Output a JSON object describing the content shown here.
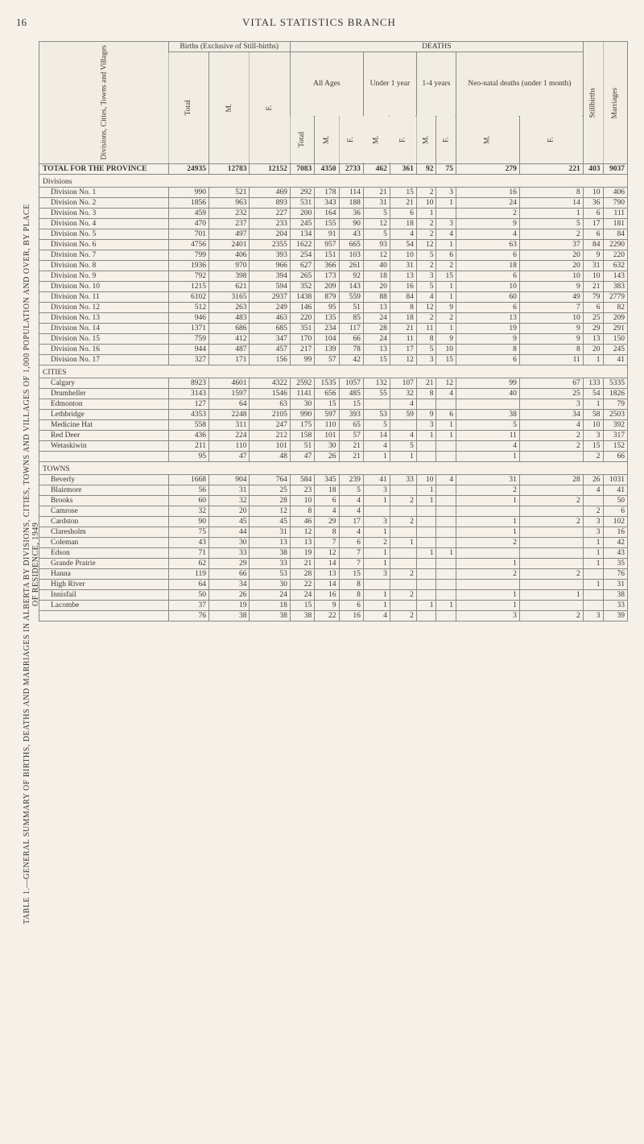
{
  "page_number": "16",
  "page_title": "VITAL STATISTICS BRANCH",
  "table_caption": "TABLE 1.—GENERAL SUMMARY OF BIRTHS, DEATHS AND MARRIAGES IN ALBERTA BY DIVISIONS, CITIES, TOWNS AND VILLAGES OF 1,000 POPULATION AND OVER, BY PLACE OF RESIDENCE, 1949",
  "row_header_title": "Divisions, Cities, Towns and Villages",
  "column_groups": {
    "births_group": "Births (Exclusive of Still-births)",
    "deaths_group": "DEATHS",
    "all_ages": "All Ages",
    "under_1": "Under 1 year",
    "one_to_four": "1-4 years",
    "neonatal": "Neo-natal deaths (under 1 month)"
  },
  "columns": [
    "Total",
    "M.",
    "F.",
    "Total",
    "M.",
    "F.",
    "M.",
    "F.",
    "M.",
    "F.",
    "M.",
    "F.",
    "Stillbirths",
    "Marriages"
  ],
  "sections": [
    {
      "label": "TOTAL FOR THE PROVINCE",
      "total_row": [
        "24935",
        "12783",
        "12152",
        "7083",
        "4350",
        "2733",
        "462",
        "361",
        "92",
        "75",
        "279",
        "221",
        "403",
        "9037"
      ]
    },
    {
      "label": "Divisions",
      "rows": [
        {
          "name": "Division No. 1",
          "vals": [
            "990",
            "521",
            "469",
            "292",
            "178",
            "114",
            "21",
            "15",
            "2",
            "3",
            "16",
            "8",
            "10",
            "406"
          ]
        },
        {
          "name": "Division No. 2",
          "vals": [
            "1856",
            "963",
            "893",
            "531",
            "343",
            "188",
            "31",
            "21",
            "10",
            "1",
            "24",
            "14",
            "36",
            "790"
          ]
        },
        {
          "name": "Division No. 3",
          "vals": [
            "459",
            "232",
            "227",
            "200",
            "164",
            "36",
            "5",
            "6",
            "1",
            "",
            "2",
            "1",
            "6",
            "111"
          ]
        },
        {
          "name": "Division No. 4",
          "vals": [
            "470",
            "237",
            "233",
            "245",
            "155",
            "90",
            "12",
            "18",
            "2",
            "3",
            "9",
            "5",
            "17",
            "181"
          ]
        },
        {
          "name": "Division No. 5",
          "vals": [
            "701",
            "497",
            "204",
            "134",
            "91",
            "43",
            "5",
            "4",
            "2",
            "4",
            "4",
            "2",
            "6",
            "84"
          ]
        },
        {
          "name": "Division No. 6",
          "vals": [
            "4756",
            "2401",
            "2355",
            "1622",
            "957",
            "665",
            "93",
            "54",
            "12",
            "1",
            "63",
            "37",
            "84",
            "2290"
          ]
        },
        {
          "name": "Division No. 7",
          "vals": [
            "799",
            "406",
            "393",
            "254",
            "151",
            "103",
            "12",
            "10",
            "5",
            "6",
            "6",
            "20",
            "9",
            "220"
          ]
        },
        {
          "name": "Division No. 8",
          "vals": [
            "1936",
            "970",
            "966",
            "627",
            "366",
            "261",
            "40",
            "31",
            "2",
            "2",
            "18",
            "20",
            "31",
            "632"
          ]
        },
        {
          "name": "Division No. 9",
          "vals": [
            "792",
            "398",
            "394",
            "265",
            "173",
            "92",
            "18",
            "13",
            "3",
            "15",
            "6",
            "10",
            "10",
            "143"
          ]
        },
        {
          "name": "Division No. 10",
          "vals": [
            "1215",
            "621",
            "594",
            "352",
            "209",
            "143",
            "20",
            "16",
            "5",
            "1",
            "10",
            "9",
            "21",
            "383"
          ]
        },
        {
          "name": "Division No. 11",
          "vals": [
            "6102",
            "3165",
            "2937",
            "1438",
            "879",
            "559",
            "88",
            "84",
            "4",
            "1",
            "60",
            "49",
            "79",
            "2779"
          ]
        },
        {
          "name": "Division No. 12",
          "vals": [
            "512",
            "263",
            "249",
            "146",
            "95",
            "51",
            "13",
            "8",
            "12",
            "9",
            "6",
            "7",
            "6",
            "82"
          ]
        },
        {
          "name": "Division No. 13",
          "vals": [
            "946",
            "483",
            "463",
            "220",
            "135",
            "85",
            "24",
            "18",
            "2",
            "2",
            "13",
            "10",
            "25",
            "209"
          ]
        },
        {
          "name": "Division No. 14",
          "vals": [
            "1371",
            "686",
            "685",
            "351",
            "234",
            "117",
            "28",
            "21",
            "11",
            "1",
            "19",
            "9",
            "29",
            "291"
          ]
        },
        {
          "name": "Division No. 15",
          "vals": [
            "759",
            "412",
            "347",
            "170",
            "104",
            "66",
            "24",
            "11",
            "8",
            "9",
            "9",
            "9",
            "13",
            "150"
          ]
        },
        {
          "name": "Division No. 16",
          "vals": [
            "944",
            "487",
            "457",
            "217",
            "139",
            "78",
            "13",
            "17",
            "5",
            "10",
            "8",
            "8",
            "20",
            "245"
          ]
        },
        {
          "name": "Division No. 17",
          "vals": [
            "327",
            "171",
            "156",
            "99",
            "57",
            "42",
            "15",
            "12",
            "3",
            "15",
            "6",
            "11",
            "1",
            "41"
          ]
        }
      ]
    },
    {
      "label": "CITIES",
      "rows": [
        {
          "name": "Calgary",
          "vals": [
            "8923",
            "4601",
            "4322",
            "2592",
            "1535",
            "1057",
            "132",
            "107",
            "21",
            "12",
            "99",
            "67",
            "133",
            "5335"
          ]
        },
        {
          "name": "Drumheller",
          "vals": [
            "3143",
            "1597",
            "1546",
            "1141",
            "656",
            "485",
            "55",
            "32",
            "8",
            "4",
            "40",
            "25",
            "54",
            "1826"
          ]
        },
        {
          "name": "Edmonton",
          "vals": [
            "127",
            "64",
            "63",
            "30",
            "15",
            "15",
            "",
            "4",
            "",
            "",
            "",
            "3",
            "1",
            "79"
          ]
        },
        {
          "name": "Lethbridge",
          "vals": [
            "4353",
            "2248",
            "2105",
            "990",
            "597",
            "393",
            "53",
            "59",
            "9",
            "6",
            "38",
            "34",
            "58",
            "2503"
          ]
        },
        {
          "name": "Medicine Hat",
          "vals": [
            "558",
            "311",
            "247",
            "175",
            "110",
            "65",
            "5",
            "",
            "3",
            "1",
            "5",
            "4",
            "10",
            "392"
          ]
        },
        {
          "name": "Red Deer",
          "vals": [
            "436",
            "224",
            "212",
            "158",
            "101",
            "57",
            "14",
            "4",
            "1",
            "1",
            "11",
            "2",
            "3",
            "317"
          ]
        },
        {
          "name": "Wetaskiwin",
          "vals": [
            "211",
            "110",
            "101",
            "51",
            "30",
            "21",
            "4",
            "5",
            "",
            "",
            "4",
            "2",
            "15",
            "152"
          ]
        },
        {
          "name": "",
          "vals": [
            "95",
            "47",
            "48",
            "47",
            "26",
            "21",
            "1",
            "1",
            "",
            "",
            "1",
            "",
            "2",
            "66"
          ]
        }
      ]
    },
    {
      "label": "TOWNS",
      "rows": [
        {
          "name": "Beverly",
          "vals": [
            "1668",
            "904",
            "764",
            "584",
            "345",
            "239",
            "41",
            "33",
            "10",
            "4",
            "31",
            "28",
            "26",
            "1031"
          ]
        },
        {
          "name": "Blairmore",
          "vals": [
            "56",
            "31",
            "25",
            "23",
            "18",
            "5",
            "3",
            "",
            "1",
            "",
            "2",
            "",
            "4",
            "41"
          ]
        },
        {
          "name": "Brooks",
          "vals": [
            "60",
            "32",
            "28",
            "10",
            "6",
            "4",
            "1",
            "2",
            "1",
            "",
            "1",
            "2",
            "",
            "50"
          ]
        },
        {
          "name": "Camrose",
          "vals": [
            "32",
            "20",
            "12",
            "8",
            "4",
            "4",
            "",
            "",
            "",
            "",
            "",
            "",
            "2",
            "6"
          ]
        },
        {
          "name": "Cardston",
          "vals": [
            "90",
            "45",
            "45",
            "46",
            "29",
            "17",
            "3",
            "2",
            "",
            "",
            "1",
            "2",
            "3",
            "102"
          ]
        },
        {
          "name": "Claresholm",
          "vals": [
            "75",
            "44",
            "31",
            "12",
            "8",
            "4",
            "1",
            "",
            "",
            "",
            "1",
            "",
            "3",
            "16"
          ]
        },
        {
          "name": "Coleman",
          "vals": [
            "43",
            "30",
            "13",
            "13",
            "7",
            "6",
            "2",
            "1",
            "",
            "",
            "2",
            "",
            "1",
            "42"
          ]
        },
        {
          "name": "Edson",
          "vals": [
            "71",
            "33",
            "38",
            "19",
            "12",
            "7",
            "1",
            "",
            "1",
            "1",
            "",
            "",
            "1",
            "43"
          ]
        },
        {
          "name": "Grande Prairie",
          "vals": [
            "62",
            "29",
            "33",
            "21",
            "14",
            "7",
            "1",
            "",
            "",
            "",
            "1",
            "",
            "1",
            "35"
          ]
        },
        {
          "name": "Hanna",
          "vals": [
            "119",
            "66",
            "53",
            "28",
            "13",
            "15",
            "3",
            "2",
            "",
            "",
            "2",
            "2",
            "",
            "76"
          ]
        },
        {
          "name": "High River",
          "vals": [
            "64",
            "34",
            "30",
            "22",
            "14",
            "8",
            "",
            "",
            "",
            "",
            "",
            "",
            "1",
            "31"
          ]
        },
        {
          "name": "Innisfail",
          "vals": [
            "50",
            "26",
            "24",
            "24",
            "16",
            "8",
            "1",
            "2",
            "",
            "",
            "1",
            "1",
            "",
            "38"
          ]
        },
        {
          "name": "Lacombe",
          "vals": [
            "37",
            "19",
            "18",
            "15",
            "9",
            "6",
            "1",
            "",
            "1",
            "1",
            "1",
            "",
            "",
            "33"
          ]
        },
        {
          "name": "",
          "vals": [
            "76",
            "38",
            "38",
            "38",
            "22",
            "16",
            "4",
            "2",
            "",
            "",
            "3",
            "2",
            "3",
            "39"
          ]
        }
      ]
    }
  ]
}
